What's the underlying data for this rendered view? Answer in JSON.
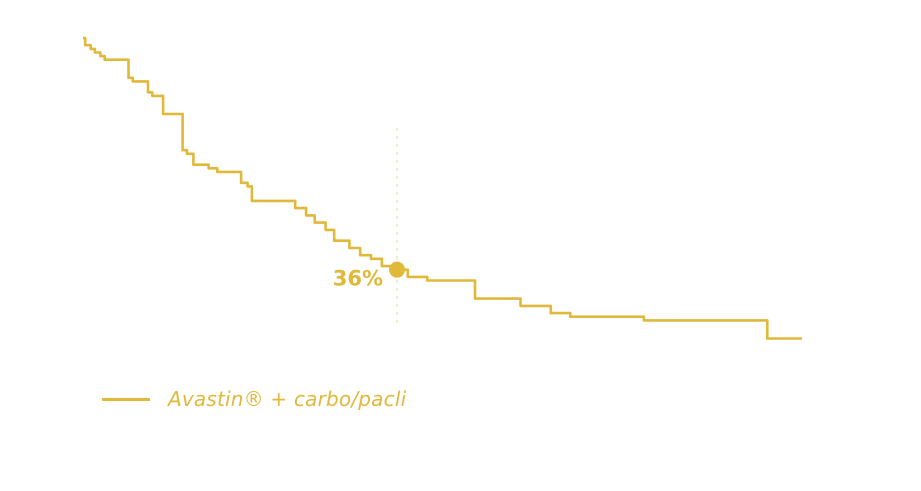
{
  "colors": {
    "series": "#e0b83a",
    "guide": "#ead79a",
    "background": "#ffffff"
  },
  "chart_data": {
    "type": "line",
    "step": true,
    "title": "",
    "xlabel": "",
    "ylabel": "",
    "xlim": [
      0,
      36
    ],
    "ylim": [
      0,
      1
    ],
    "grid": false,
    "legend_position": "bottom-left",
    "series": [
      {
        "name": "Avastin® + carbo/pacli",
        "x": [
          0,
          0.1,
          0.35,
          0.55,
          0.8,
          1.0,
          2.1,
          2.3,
          3.0,
          3.2,
          3.7,
          4.6,
          4.8,
          5.1,
          5.8,
          6.2,
          7.3,
          7.6,
          7.8,
          9.8,
          10.3,
          10.7,
          11.2,
          11.6,
          12.3,
          12.8,
          13.3,
          13.8,
          14.5,
          15.0,
          15.9,
          18.1,
          20.2,
          21.6,
          22.5,
          25.9,
          31.6,
          33.2
        ],
        "y": [
          1.0,
          0.98,
          0.97,
          0.96,
          0.95,
          0.94,
          0.89,
          0.88,
          0.85,
          0.84,
          0.79,
          0.69,
          0.68,
          0.65,
          0.64,
          0.63,
          0.6,
          0.59,
          0.55,
          0.53,
          0.51,
          0.49,
          0.47,
          0.44,
          0.42,
          0.4,
          0.39,
          0.37,
          0.36,
          0.34,
          0.33,
          0.28,
          0.26,
          0.24,
          0.23,
          0.22,
          0.17,
          0.17
        ]
      }
    ],
    "annotations": [
      {
        "x": 14.5,
        "y": 0.36,
        "label": "36%"
      }
    ]
  }
}
